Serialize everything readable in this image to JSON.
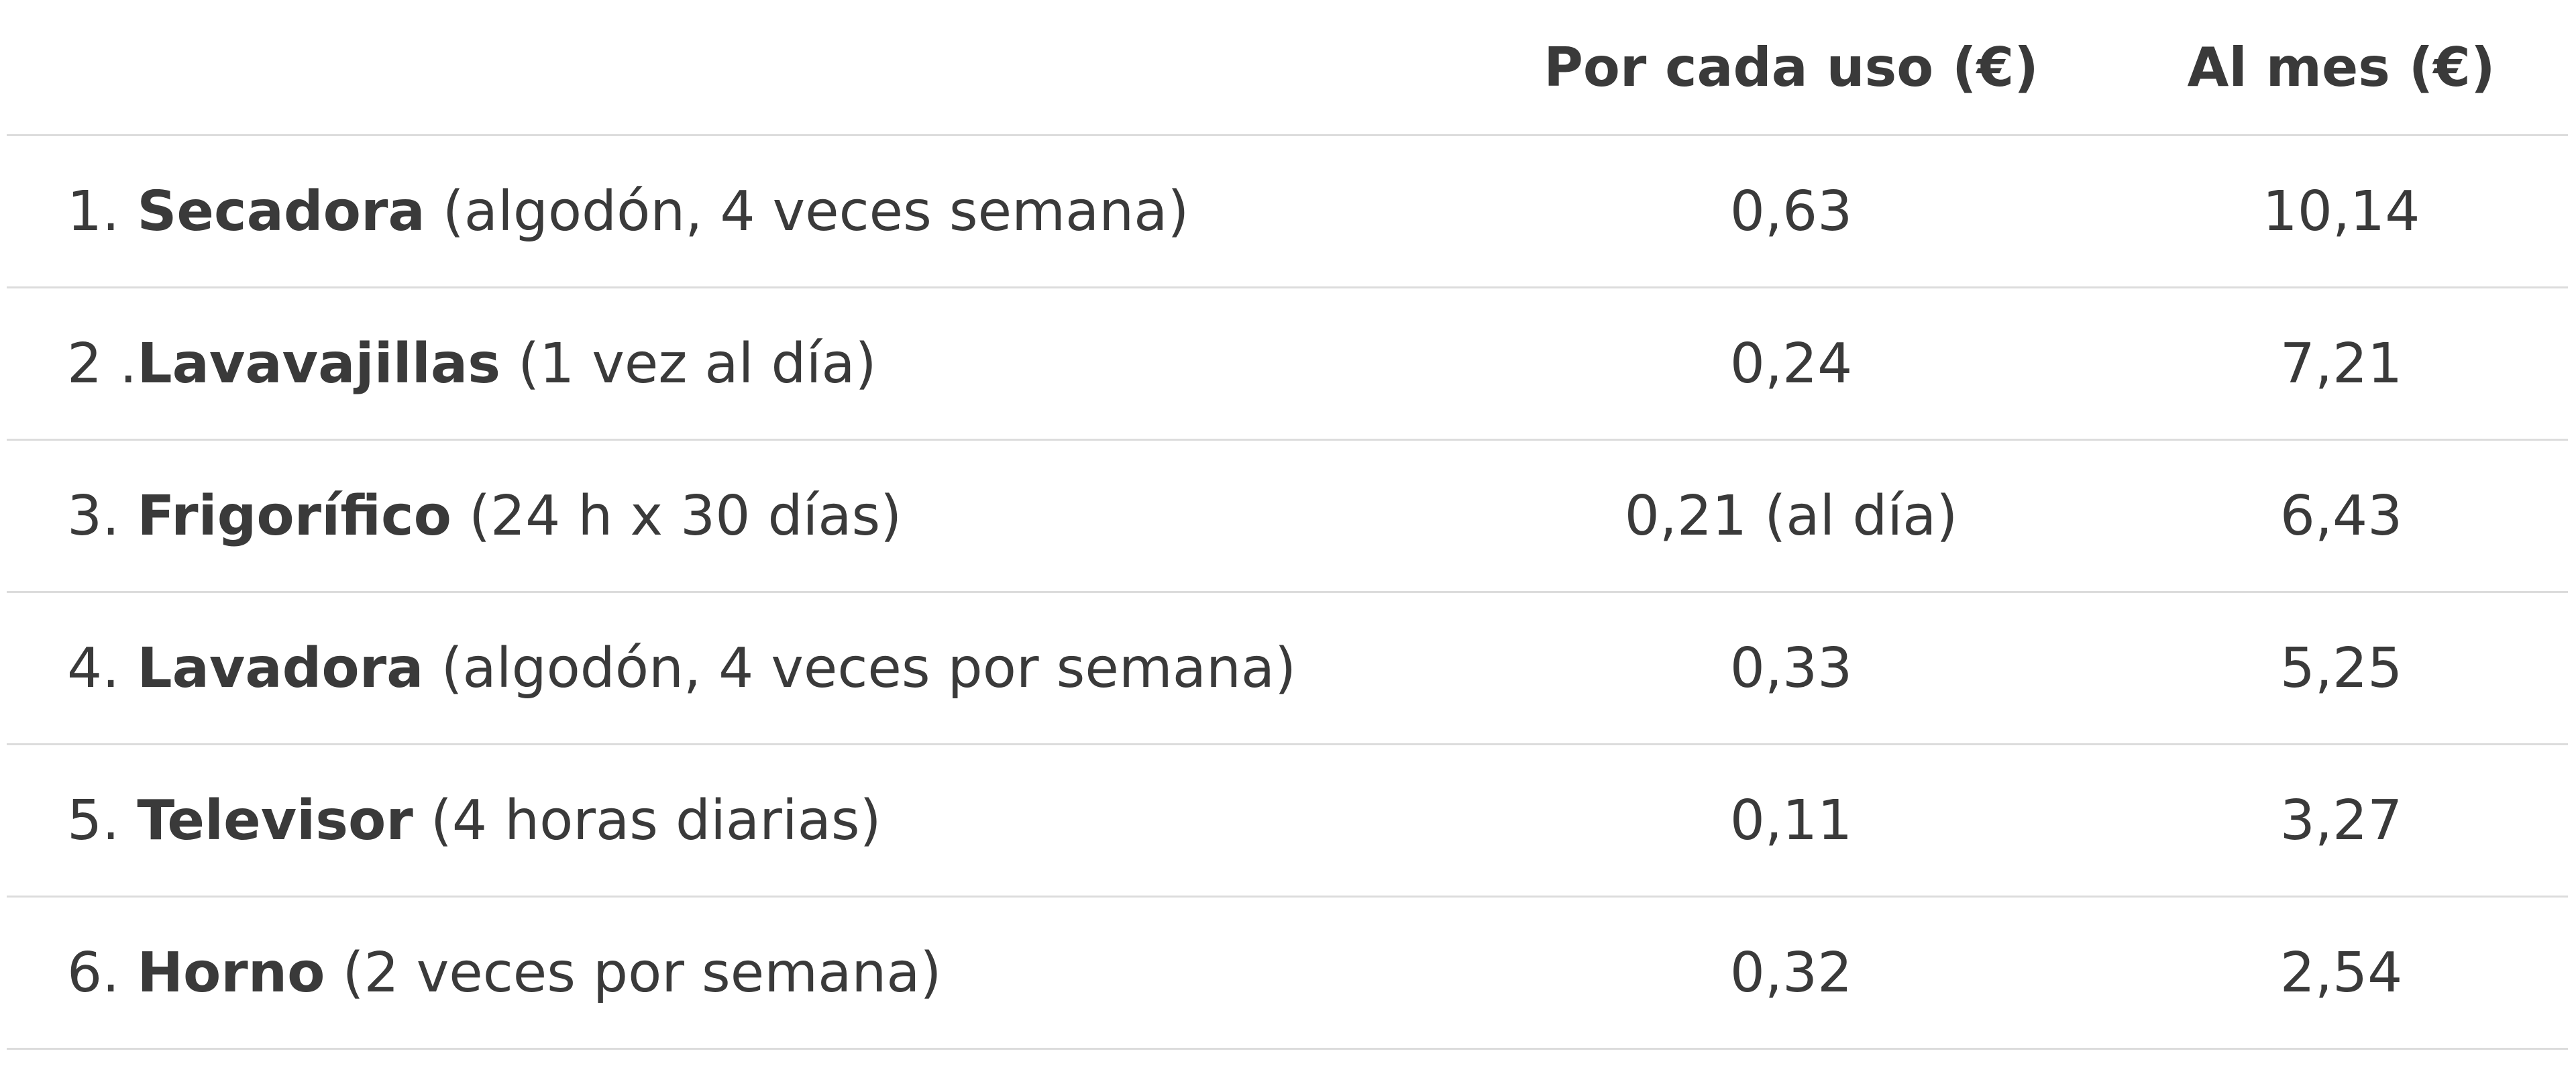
{
  "table": {
    "headers": {
      "item": "",
      "per_use": "Por cada uso (€)",
      "per_month": "Al mes (€)"
    },
    "rows": [
      {
        "number": "1. ",
        "name": "Secadora",
        "detail": " (algodón, 4 veces semana)",
        "per_use": "0,63",
        "per_month": "10,14"
      },
      {
        "number": "2 .",
        "name": "Lavavajillas",
        "detail": " (1 vez al día)",
        "per_use": "0,24",
        "per_month": "7,21"
      },
      {
        "number": "3. ",
        "name": "Frigorífico",
        "detail": " (24 h x 30 días)",
        "per_use": "0,21 (al día)",
        "per_month": "6,43"
      },
      {
        "number": "4. ",
        "name": "Lavadora",
        "detail": " (algodón, 4 veces por semana)",
        "per_use": "0,33",
        "per_month": "5,25"
      },
      {
        "number": "5. ",
        "name": "Televisor",
        "detail": " (4 horas diarias)",
        "per_use": "0,11",
        "per_month": "3,27"
      },
      {
        "number": "6. ",
        "name": "Horno",
        "detail": " (2 veces por semana)",
        "per_use": "0,32",
        "per_month": "2,54"
      }
    ]
  }
}
